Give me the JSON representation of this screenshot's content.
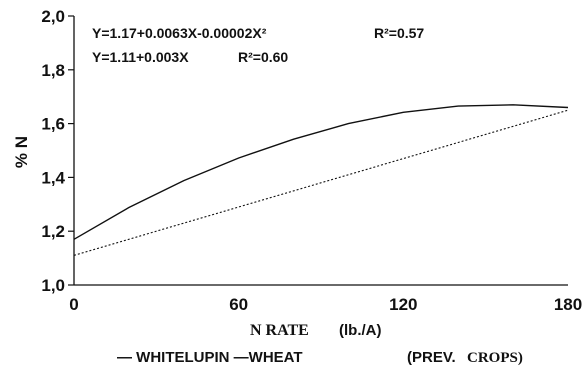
{
  "chart_data": {
    "type": "line",
    "title": "",
    "xlabel": "N RATE",
    "xlabel_unit": "(lb./A)",
    "ylabel": "% N",
    "xlim": [
      0,
      180
    ],
    "ylim": [
      1.0,
      2.0
    ],
    "x_ticks": [
      0,
      60,
      120,
      180
    ],
    "x_tick_labels": [
      "0",
      "60",
      "120",
      "180"
    ],
    "y_ticks": [
      1.0,
      1.2,
      1.4,
      1.6,
      1.8,
      2.0
    ],
    "y_tick_labels": [
      "1,0",
      "1,2",
      "1,4",
      "1,6",
      "1,8",
      "2,0"
    ],
    "grid": false,
    "annotations": [
      {
        "equation": "Y=1.17+0.0063X-0.00002X²",
        "r2": "R²=0.57"
      },
      {
        "equation": "Y=1.11+0.003X",
        "r2": "R²=0.60"
      }
    ],
    "series": [
      {
        "style": "solid",
        "x": [
          0,
          20,
          40,
          60,
          80,
          100,
          120,
          140,
          160,
          180
        ],
        "y": [
          1.17,
          1.288,
          1.388,
          1.472,
          1.542,
          1.6,
          1.642,
          1.665,
          1.67,
          1.66
        ]
      },
      {
        "style": "dotted",
        "x": [
          0,
          60,
          120,
          180
        ],
        "y": [
          1.11,
          1.29,
          1.47,
          1.65
        ]
      }
    ],
    "legend": {
      "placement": "bottom",
      "label_a": "— WHITELUPIN —WHEAT",
      "label_b_bold": "(PREV.",
      "label_b_serif": "CROPS)"
    }
  }
}
